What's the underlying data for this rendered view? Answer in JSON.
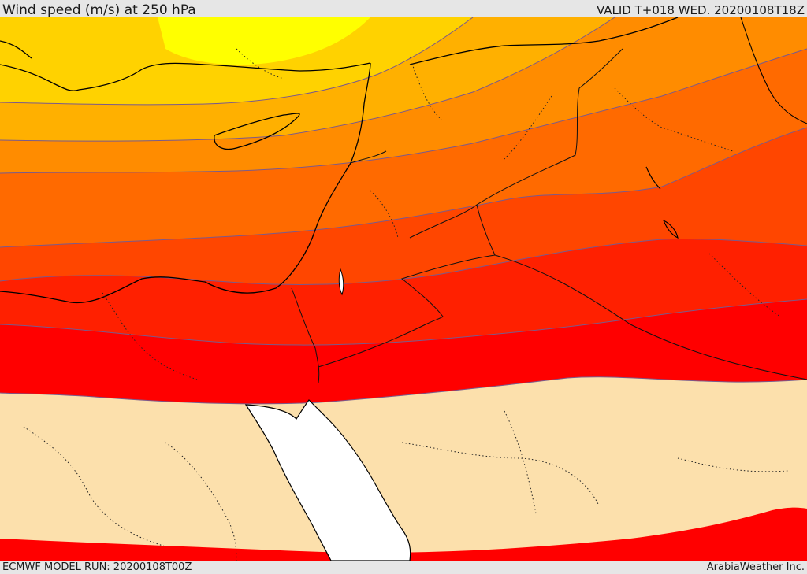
{
  "header": {
    "title": "Wind speed (m/s) at 250 hPa",
    "valid": "VALID T+018 WED. 20200108T18Z"
  },
  "footer": {
    "model_run": "ECMWF MODEL RUN: 20200108T00Z",
    "credit": "ArabiaWeather Inc."
  },
  "colors": {
    "frame": "#e6e6e6",
    "below_threshold": "#fce0ac",
    "bands": [
      "#ff0000",
      "#ff2000",
      "#ff4600",
      "#ff6a00",
      "#ff8c00",
      "#ffb000",
      "#ffd200",
      "#ffff00"
    ],
    "water": "#ffffff",
    "coast": "#000000",
    "contour": "#7a5a8c"
  }
}
